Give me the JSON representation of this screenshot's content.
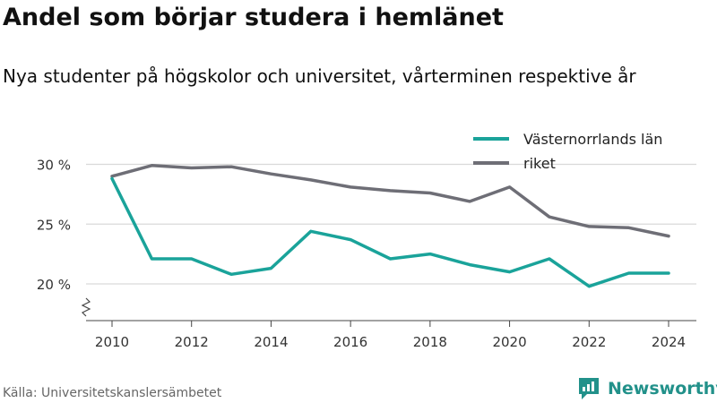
{
  "header": {
    "title": "Andel som börjar studera i hemlänet",
    "subtitle": "Nya studenter på högskolor och universitet, vårterminen respektive år"
  },
  "footer": {
    "source": "Källa: Universitetskanslersämbetet",
    "brand": "Newsworthy"
  },
  "colors": {
    "teal": "#1aa39a",
    "gray": "#6e6e76",
    "brand": "#22918a",
    "grid": "#d9d9d9"
  },
  "chart_data": {
    "type": "line",
    "x": [
      2010,
      2011,
      2012,
      2013,
      2014,
      2015,
      2016,
      2017,
      2018,
      2019,
      2020,
      2021,
      2022,
      2023,
      2024
    ],
    "x_ticks": [
      2010,
      2012,
      2014,
      2016,
      2018,
      2020,
      2022,
      2024
    ],
    "y_ticks": [
      {
        "value": 20,
        "label": "20 %"
      },
      {
        "value": 25,
        "label": "25 %"
      },
      {
        "value": 30,
        "label": "30 %"
      }
    ],
    "ylim": [
      17,
      31
    ],
    "y_axis_break": true,
    "grid": true,
    "legend_position": "top-right",
    "series": [
      {
        "name": "Västernorrlands län",
        "color": "#1aa39a",
        "values": [
          28.8,
          22.1,
          22.1,
          20.8,
          21.3,
          24.4,
          23.7,
          22.1,
          22.5,
          21.6,
          21.0,
          22.1,
          19.8,
          20.9,
          20.9
        ]
      },
      {
        "name": "riket",
        "color": "#6e6e76",
        "values": [
          29.0,
          29.9,
          29.7,
          29.8,
          29.2,
          28.7,
          28.1,
          27.8,
          27.6,
          26.9,
          28.1,
          25.6,
          24.8,
          24.7,
          24.0
        ]
      }
    ]
  }
}
